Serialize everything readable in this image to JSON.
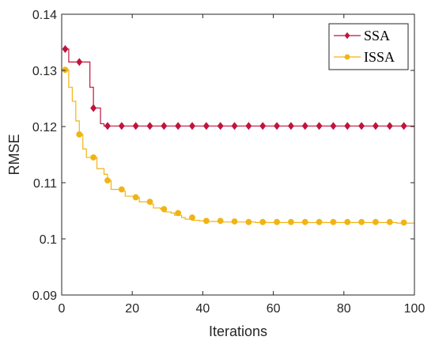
{
  "chart_data": {
    "type": "line",
    "xlabel": "Iterations",
    "ylabel": "RMSE",
    "xlim": [
      0,
      100
    ],
    "ylim": [
      0.09,
      0.14
    ],
    "xticks": [
      0,
      20,
      40,
      60,
      80,
      100
    ],
    "yticks": [
      0.09,
      0.1,
      0.11,
      0.12,
      0.13,
      0.14
    ],
    "xtick_labels": [
      "0",
      "20",
      "40",
      "60",
      "80",
      "100"
    ],
    "ytick_labels": [
      "0.09",
      "0.1",
      "0.11",
      "0.12",
      "0.13",
      "0.14"
    ],
    "grid": false,
    "legend_position": "top-right",
    "series": [
      {
        "name": "SSA",
        "color": "#c0143c",
        "marker": "diamond",
        "x": [
          1,
          5,
          9,
          13,
          17,
          21,
          25,
          29,
          33,
          37,
          41,
          45,
          49,
          53,
          57,
          61,
          65,
          69,
          73,
          77,
          81,
          85,
          89,
          93,
          97
        ],
        "y": [
          0.1338,
          0.1315,
          0.1233,
          0.1201,
          0.1201,
          0.1201,
          0.1201,
          0.1201,
          0.1201,
          0.1201,
          0.1201,
          0.1201,
          0.1201,
          0.1201,
          0.1201,
          0.1201,
          0.1201,
          0.1201,
          0.1201,
          0.1201,
          0.1201,
          0.1201,
          0.1201,
          0.1201,
          0.1201
        ],
        "line_x": [
          1,
          2,
          2,
          8,
          8,
          9,
          9,
          11,
          11,
          12,
          12,
          100
        ],
        "line_y": [
          0.1338,
          0.1338,
          0.1315,
          0.1315,
          0.127,
          0.127,
          0.1233,
          0.1233,
          0.1205,
          0.1205,
          0.1201,
          0.1201
        ]
      },
      {
        "name": "ISSA",
        "color": "#f0b414",
        "marker": "circle",
        "x": [
          1,
          5,
          9,
          13,
          17,
          21,
          25,
          29,
          33,
          37,
          41,
          45,
          49,
          53,
          57,
          61,
          65,
          69,
          73,
          77,
          81,
          85,
          89,
          93,
          97
        ],
        "y": [
          0.1301,
          0.1186,
          0.1145,
          0.1104,
          0.1088,
          0.1074,
          0.1066,
          0.1053,
          0.1046,
          0.1038,
          0.1032,
          0.1032,
          0.1031,
          0.103,
          0.103,
          0.103,
          0.103,
          0.103,
          0.103,
          0.103,
          0.103,
          0.103,
          0.103,
          0.103,
          0.1029
        ],
        "line_x": [
          1,
          2,
          2,
          3,
          3,
          4,
          4,
          5,
          5,
          6,
          6,
          7,
          7,
          10,
          10,
          12,
          12,
          13,
          13,
          14,
          14,
          17,
          17,
          18,
          18,
          21,
          21,
          22,
          22,
          25,
          25,
          26,
          26,
          28,
          28,
          29,
          29,
          31,
          31,
          32,
          32,
          34,
          34,
          35,
          35,
          37,
          37,
          39,
          39,
          41,
          41,
          45,
          45,
          48,
          48,
          55,
          55,
          95,
          95,
          100
        ],
        "line_y": [
          0.1301,
          0.1301,
          0.127,
          0.127,
          0.1245,
          0.1245,
          0.121,
          0.121,
          0.1186,
          0.1186,
          0.116,
          0.116,
          0.1145,
          0.1145,
          0.1125,
          0.1125,
          0.1115,
          0.1115,
          0.1104,
          0.1104,
          0.1088,
          0.1088,
          0.1085,
          0.1085,
          0.1076,
          0.1076,
          0.1074,
          0.1074,
          0.1066,
          0.1066,
          0.1062,
          0.1062,
          0.1055,
          0.1055,
          0.1053,
          0.1053,
          0.1048,
          0.1048,
          0.1046,
          0.1046,
          0.1042,
          0.1042,
          0.1038,
          0.1038,
          0.1035,
          0.1035,
          0.1033,
          0.1033,
          0.1032,
          0.1032,
          0.1031,
          0.1031,
          0.103,
          0.103,
          0.103,
          0.103,
          0.1029,
          0.1029,
          0.1028,
          0.1028
        ]
      }
    ]
  }
}
